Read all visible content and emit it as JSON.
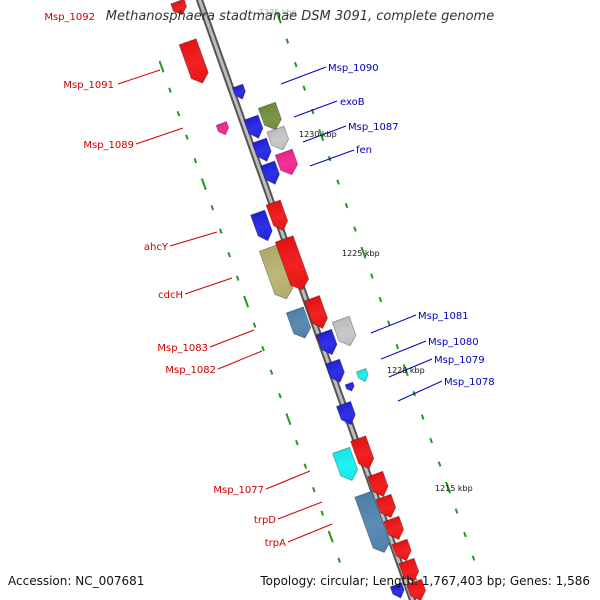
{
  "title": "Methanosphaera stadtmanae DSM 3091, complete genome",
  "footer": {
    "accession_label": "Accession:",
    "accession": "NC_007681",
    "topology_label": "Topology:",
    "topology": "circular",
    "length_label": "Length:",
    "length": "1,767,403 bp",
    "genes_label": "Genes:",
    "genes": "1,586"
  },
  "colors": {
    "backbone": "#888888",
    "left_label": "#cc0000",
    "right_label": "#0000bb",
    "tick": "#229922",
    "red": "#ff0000",
    "blue": "#1111ee",
    "green_olive": "#6f8f30",
    "khaki": "#bdb76b",
    "steelblue": "#4682b4",
    "cyan": "#00ffff",
    "magenta": "#ff1493",
    "light_gray": "#cccccc"
  },
  "scale": {
    "ticks": [
      {
        "label": "1235 kbp"
      },
      {
        "label": "1230 kbp"
      },
      {
        "label": "1225 kbp"
      },
      {
        "label": "1220 kbp"
      },
      {
        "label": "1215 kbp"
      }
    ]
  },
  "left_labels": [
    {
      "text": "Msp_1092"
    },
    {
      "text": "Msp_1091"
    },
    {
      "text": "Msp_1089"
    },
    {
      "text": "ahcY"
    },
    {
      "text": "cdcH"
    },
    {
      "text": "Msp_1083"
    },
    {
      "text": "Msp_1082"
    },
    {
      "text": "Msp_1077"
    },
    {
      "text": "trpD"
    },
    {
      "text": "trpA"
    }
  ],
  "right_labels": [
    {
      "text": "Msp_1090"
    },
    {
      "text": "exoB"
    },
    {
      "text": "Msp_1087"
    },
    {
      "text": "fen"
    },
    {
      "text": "Msp_1081"
    },
    {
      "text": "Msp_1080"
    },
    {
      "text": "Msp_1079"
    },
    {
      "text": "Msp_1078"
    }
  ]
}
